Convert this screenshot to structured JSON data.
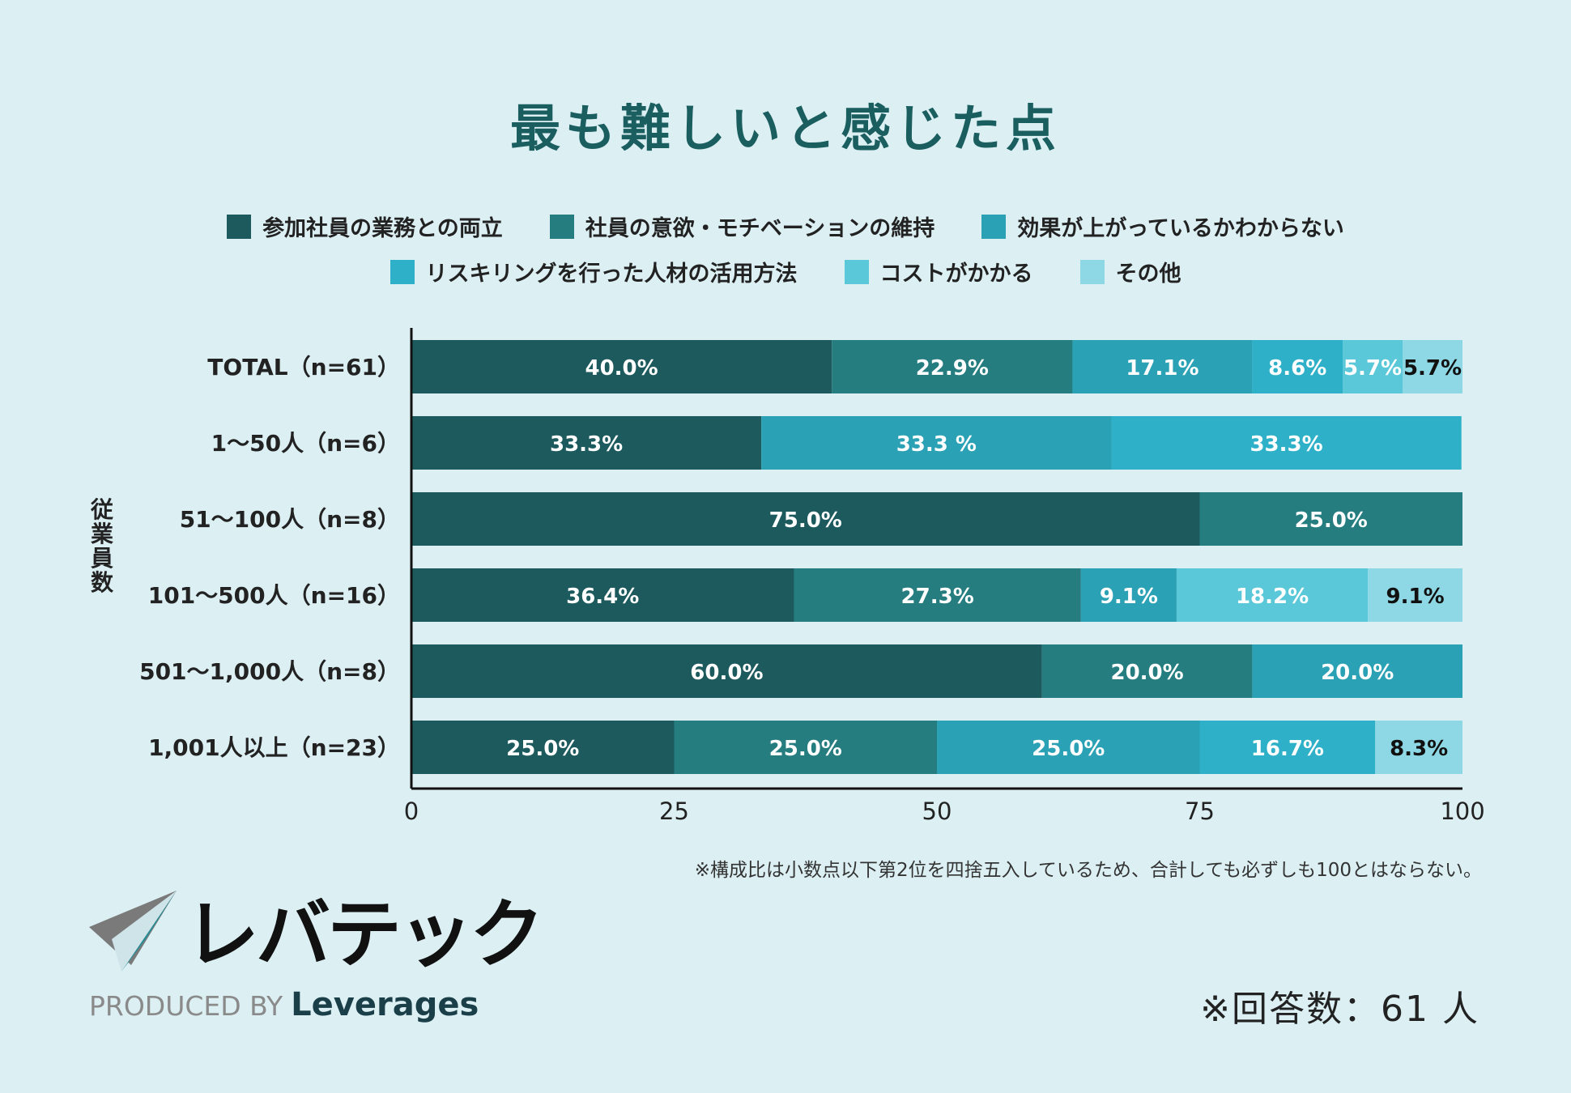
{
  "title": "最も難しいと感じた点",
  "y_axis_title": "従業員数",
  "legend_rows": [
    [
      0,
      1,
      2
    ],
    [
      3,
      4,
      5
    ]
  ],
  "chart_data": {
    "type": "bar",
    "orientation": "horizontal",
    "stacked": true,
    "title": "最も難しいと感じた点",
    "ylabel": "従業員数",
    "xlabel": "",
    "xlim": [
      0,
      100
    ],
    "xticks": [
      0,
      25,
      50,
      75,
      100
    ],
    "categories": [
      "TOTAL（n=61）",
      "1〜50人（n=6）",
      "51〜100人（n=8）",
      "101〜500人（n=16）",
      "501〜1,000人（n=8）",
      "1,001人以上（n=23）"
    ],
    "series": [
      {
        "name": "参加社員の業務との両立",
        "color": "#1d5a5d",
        "values": [
          40.0,
          33.3,
          75.0,
          36.4,
          60.0,
          25.0
        ],
        "labels": [
          "40.0%",
          "33.3%",
          "75.0%",
          "36.4%",
          "60.0%",
          "25.0%"
        ]
      },
      {
        "name": "社員の意欲・モチベーションの維持",
        "color": "#257d80",
        "values": [
          22.9,
          0,
          25.0,
          27.3,
          20.0,
          25.0
        ],
        "labels": [
          "22.9%",
          "",
          "25.0%",
          "27.3%",
          "20.0%",
          "25.0%"
        ]
      },
      {
        "name": "効果が上がっているかわからない",
        "color": "#2aa1b4",
        "values": [
          17.1,
          33.3,
          0,
          9.1,
          20.0,
          25.0
        ],
        "labels": [
          "17.1%",
          "33.3 %",
          "",
          "9.1%",
          "20.0%",
          "25.0%"
        ]
      },
      {
        "name": "リスキリングを行った人材の活用方法",
        "color": "#2eb0c8",
        "values": [
          8.6,
          33.3,
          0,
          0,
          0,
          16.7
        ],
        "labels": [
          "8.6%",
          "33.3%",
          "",
          "",
          "",
          "16.7%"
        ]
      },
      {
        "name": "コストがかかる",
        "color": "#5ac8d9",
        "values": [
          5.7,
          0,
          0,
          18.2,
          0,
          0
        ],
        "labels": [
          "5.7%",
          "",
          "",
          "18.2%",
          "",
          ""
        ]
      },
      {
        "name": "その他",
        "color": "#8dd8e4",
        "values": [
          5.7,
          0,
          0,
          9.1,
          0,
          8.3
        ],
        "labels": [
          "5.7%",
          "",
          "",
          "9.1%",
          "",
          "8.3%"
        ]
      }
    ],
    "dark_label_series": [
      5
    ]
  },
  "note": "※構成比は小数点以下第2位を四捨五入しているため、合計しても必ずしも100とはならない。",
  "response_count": "※回答数：61 人",
  "logo": {
    "name": "レバテック",
    "produced_by": "PRODUCED BY",
    "brand": "Leverages"
  }
}
